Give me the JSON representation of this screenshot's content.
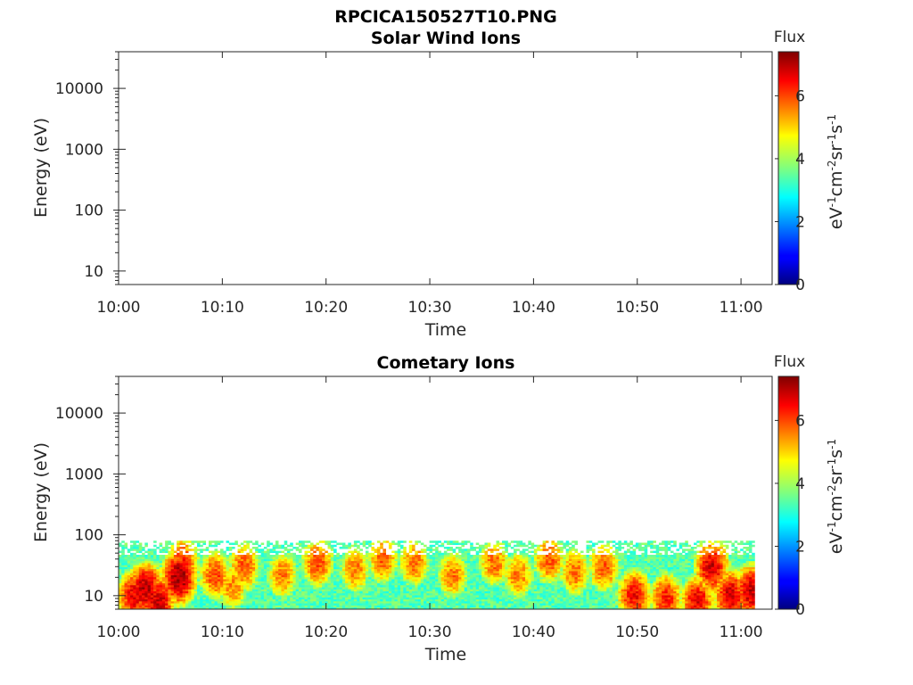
{
  "figure_title": "RPCICA150527T10.PNG",
  "chart_data": [
    {
      "type": "heatmap",
      "title": "Solar Wind Ions",
      "xlabel": "Time",
      "ylabel": "Energy (eV)",
      "x_ticks": [
        "10:00",
        "10:10",
        "10:20",
        "10:30",
        "10:40",
        "10:50",
        "11:00"
      ],
      "x_range_minutes": [
        0,
        63
      ],
      "y_scale": "log",
      "y_ticks": [
        {
          "value": 10,
          "label": "10"
        },
        {
          "value": 100,
          "label": "100"
        },
        {
          "value": 1000,
          "label": "1000"
        },
        {
          "value": 10000,
          "label": "10000"
        }
      ],
      "y_range": [
        6,
        40000
      ],
      "colorbar": {
        "title": "Flux",
        "label_parts": [
          "eV",
          "-1",
          "cm",
          "-2",
          "sr",
          "-1",
          "s",
          "-1"
        ],
        "range": [
          0,
          7.4
        ],
        "ticks": [
          {
            "value": 0,
            "label": "0"
          },
          {
            "value": 2,
            "label": "2"
          },
          {
            "value": 4,
            "label": "4"
          },
          {
            "value": 6,
            "label": "6"
          }
        ],
        "colormap": "jet"
      },
      "features": []
    },
    {
      "type": "heatmap",
      "title": "Cometary Ions",
      "xlabel": "Time",
      "ylabel": "Energy (eV)",
      "x_ticks": [
        "10:00",
        "10:10",
        "10:20",
        "10:30",
        "10:40",
        "10:50",
        "11:00"
      ],
      "x_range_minutes": [
        0,
        63
      ],
      "y_scale": "log",
      "y_ticks": [
        {
          "value": 10,
          "label": "10"
        },
        {
          "value": 100,
          "label": "100"
        },
        {
          "value": 1000,
          "label": "1000"
        },
        {
          "value": 10000,
          "label": "10000"
        }
      ],
      "y_range": [
        6,
        40000
      ],
      "colorbar": {
        "title": "Flux",
        "label_parts": [
          "eV",
          "-1",
          "cm",
          "-2",
          "sr",
          "-1",
          "s",
          "-1"
        ],
        "range": [
          0,
          7.4
        ],
        "ticks": [
          {
            "value": 0,
            "label": "0"
          },
          {
            "value": 2,
            "label": "2"
          },
          {
            "value": 4,
            "label": "4"
          },
          {
            "value": 6,
            "label": "6"
          }
        ],
        "colormap": "jet"
      },
      "data_coverage": {
        "time_minutes": [
          0,
          61.3
        ],
        "energy_ev": [
          6,
          80
        ]
      },
      "features": [
        {
          "t": 1.5,
          "e": 10,
          "flux": 6.6
        },
        {
          "t": 2.6,
          "e": 13,
          "flux": 7.0
        },
        {
          "t": 3.8,
          "e": 8,
          "flux": 6.9
        },
        {
          "t": 5.8,
          "e": 20,
          "flux": 7.2
        },
        {
          "t": 6.2,
          "e": 35,
          "flux": 6.2
        },
        {
          "t": 9.3,
          "e": 22,
          "flux": 6.0
        },
        {
          "t": 11.0,
          "e": 14,
          "flux": 5.5
        },
        {
          "t": 12.1,
          "e": 30,
          "flux": 5.9
        },
        {
          "t": 15.8,
          "e": 22,
          "flux": 5.6
        },
        {
          "t": 19.2,
          "e": 35,
          "flux": 6.0
        },
        {
          "t": 22.8,
          "e": 28,
          "flux": 5.6
        },
        {
          "t": 25.5,
          "e": 40,
          "flux": 5.8
        },
        {
          "t": 28.5,
          "e": 35,
          "flux": 5.7
        },
        {
          "t": 32.2,
          "e": 22,
          "flux": 5.6
        },
        {
          "t": 36.2,
          "e": 35,
          "flux": 5.7
        },
        {
          "t": 38.5,
          "e": 22,
          "flux": 5.6
        },
        {
          "t": 41.5,
          "e": 40,
          "flux": 5.9
        },
        {
          "t": 44.0,
          "e": 25,
          "flux": 5.7
        },
        {
          "t": 46.8,
          "e": 30,
          "flux": 5.9
        },
        {
          "t": 49.7,
          "e": 10,
          "flux": 6.5
        },
        {
          "t": 52.8,
          "e": 9,
          "flux": 6.3
        },
        {
          "t": 55.8,
          "e": 8,
          "flux": 6.6
        },
        {
          "t": 57.2,
          "e": 30,
          "flux": 6.8
        },
        {
          "t": 59.0,
          "e": 10,
          "flux": 6.8
        },
        {
          "t": 61.0,
          "e": 12,
          "flux": 6.9
        }
      ]
    }
  ]
}
